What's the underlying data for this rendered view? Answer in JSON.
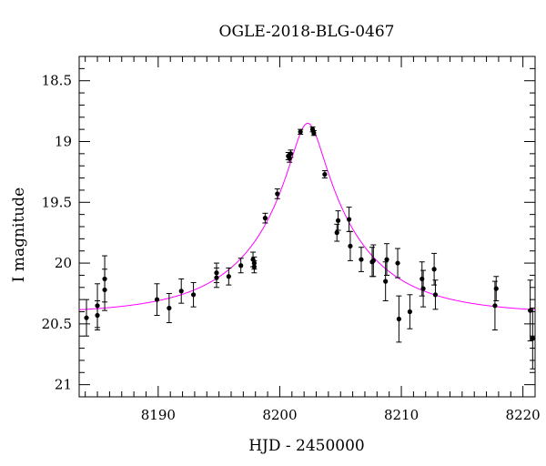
{
  "chart_data": {
    "type": "scatter",
    "title": "OGLE-2018-BLG-0467",
    "xlabel": "HJD - 2450000",
    "ylabel": "I magnitude",
    "xlim": [
      8183.5,
      8221.0
    ],
    "ylim": [
      21.1,
      18.3
    ],
    "y_inverted": true,
    "x_ticks": [
      8190,
      8200,
      8210,
      8220
    ],
    "x_tick_labels": [
      "8190",
      "8200",
      "8210",
      "8220"
    ],
    "y_ticks": [
      18.5,
      19,
      19.5,
      20,
      20.5,
      21
    ],
    "y_tick_labels": [
      "18.5",
      "19",
      "19.5",
      "20",
      "20.5",
      "21"
    ],
    "grid": false,
    "model": {
      "color": "#ff00ff",
      "peak_time": 8202.3,
      "baseline_mag": 20.42,
      "peak_mag": 18.85,
      "u0": 0.15,
      "tE": 8.5
    },
    "series": [
      {
        "marker_color": "#000000",
        "x": [
          8184.1,
          8185.0,
          8185.0,
          8185.6,
          8185.6,
          8189.9,
          8190.9,
          8191.9,
          8192.9,
          8194.8,
          8194.8,
          8195.8,
          8196.8,
          8197.8,
          8197.9,
          8197.9,
          8198.8,
          8199.8,
          8200.7,
          8200.8,
          8200.9,
          8201.7,
          8202.7,
          8202.8,
          8203.7,
          8204.7,
          8204.8,
          8205.7,
          8205.8,
          8206.7,
          8207.6,
          8207.7,
          8208.7,
          8208.8,
          8209.7,
          8209.8,
          8210.7,
          8211.7,
          8211.8,
          8212.7,
          8212.8,
          8217.7,
          8217.8,
          8220.6,
          8220.8
        ],
        "y": [
          20.45,
          20.35,
          20.43,
          20.13,
          20.22,
          20.3,
          20.37,
          20.23,
          20.26,
          20.08,
          20.12,
          20.11,
          20.02,
          19.97,
          20.0,
          20.03,
          19.63,
          19.43,
          19.12,
          19.14,
          19.1,
          18.92,
          18.9,
          18.93,
          19.27,
          19.75,
          19.65,
          19.64,
          19.86,
          19.97,
          19.99,
          19.98,
          20.15,
          19.97,
          20.0,
          20.46,
          20.4,
          20.13,
          20.21,
          20.05,
          20.26,
          20.35,
          20.21,
          20.39,
          20.62
        ],
        "yerr": [
          0.15,
          0.18,
          0.12,
          0.19,
          0.17,
          0.13,
          0.12,
          0.1,
          0.1,
          0.08,
          0.08,
          0.07,
          0.06,
          0.06,
          0.05,
          0.05,
          0.04,
          0.04,
          0.03,
          0.03,
          0.03,
          0.02,
          0.02,
          0.02,
          0.03,
          0.07,
          0.08,
          0.1,
          0.12,
          0.1,
          0.12,
          0.13,
          0.16,
          0.13,
          0.12,
          0.19,
          0.14,
          0.14,
          0.15,
          0.13,
          0.12,
          0.2,
          0.1,
          0.25,
          0.25
        ]
      }
    ]
  }
}
